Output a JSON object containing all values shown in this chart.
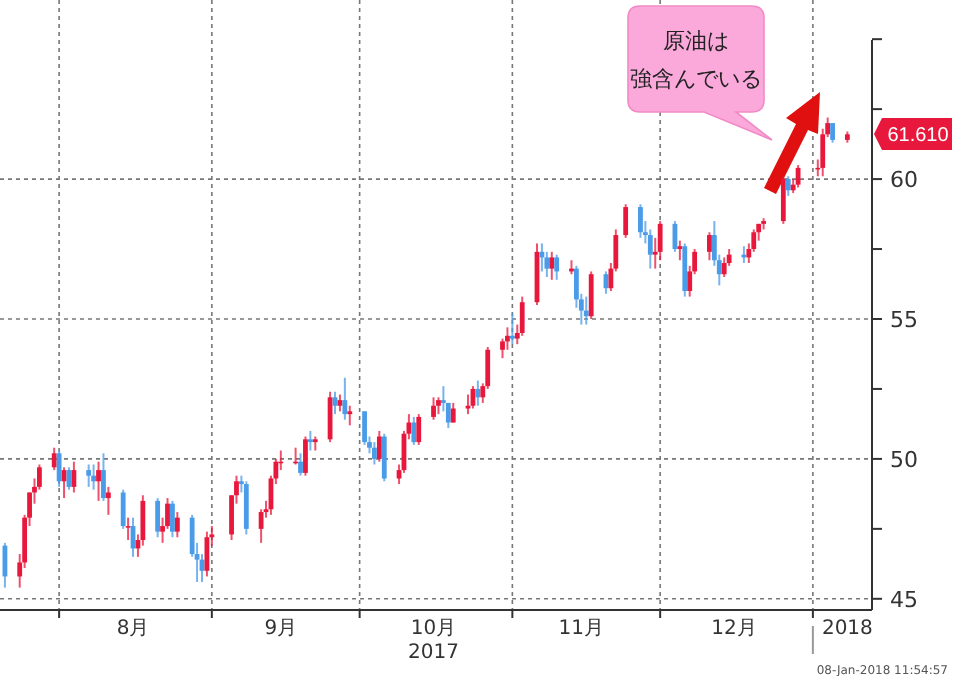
{
  "chart_data": {
    "type": "candlestick",
    "x": [
      "2017-07-21",
      "2017-07-24",
      "2017-07-25",
      "2017-07-26",
      "2017-07-27",
      "2017-07-28",
      "2017-07-31",
      "2017-08-01",
      "2017-08-02",
      "2017-08-03",
      "2017-08-04",
      "2017-08-07",
      "2017-08-08",
      "2017-08-09",
      "2017-08-10",
      "2017-08-11",
      "2017-08-14",
      "2017-08-15",
      "2017-08-16",
      "2017-08-17",
      "2017-08-18",
      "2017-08-21",
      "2017-08-22",
      "2017-08-23",
      "2017-08-24",
      "2017-08-25",
      "2017-08-28",
      "2017-08-29",
      "2017-08-30",
      "2017-08-31",
      "2017-09-01",
      "2017-09-05",
      "2017-09-06",
      "2017-09-07",
      "2017-09-08",
      "2017-09-11",
      "2017-09-12",
      "2017-09-13",
      "2017-09-14",
      "2017-09-15",
      "2017-09-18",
      "2017-09-19",
      "2017-09-20",
      "2017-09-21",
      "2017-09-22",
      "2017-09-25",
      "2017-09-26",
      "2017-09-27",
      "2017-09-28",
      "2017-09-29",
      "2017-10-02",
      "2017-10-03",
      "2017-10-04",
      "2017-10-05",
      "2017-10-06",
      "2017-10-09",
      "2017-10-10",
      "2017-10-11",
      "2017-10-12",
      "2017-10-13",
      "2017-10-16",
      "2017-10-17",
      "2017-10-18",
      "2017-10-19",
      "2017-10-20",
      "2017-10-23",
      "2017-10-24",
      "2017-10-25",
      "2017-10-26",
      "2017-10-27",
      "2017-10-30",
      "2017-10-31",
      "2017-11-01",
      "2017-11-02",
      "2017-11-03",
      "2017-11-06",
      "2017-11-07",
      "2017-11-08",
      "2017-11-09",
      "2017-11-10",
      "2017-11-13",
      "2017-11-14",
      "2017-11-15",
      "2017-11-16",
      "2017-11-17",
      "2017-11-20",
      "2017-11-21",
      "2017-11-22",
      "2017-11-24",
      "2017-11-27",
      "2017-11-28",
      "2017-11-29",
      "2017-11-30",
      "2017-12-01",
      "2017-12-04",
      "2017-12-05",
      "2017-12-06",
      "2017-12-07",
      "2017-12-08",
      "2017-12-11",
      "2017-12-12",
      "2017-12-13",
      "2017-12-14",
      "2017-12-15",
      "2017-12-18",
      "2017-12-19",
      "2017-12-20",
      "2017-12-21",
      "2017-12-22",
      "2017-12-26",
      "2017-12-27",
      "2017-12-28",
      "2017-12-29",
      "2018-01-02",
      "2018-01-03",
      "2018-01-04",
      "2018-01-05",
      "2018-01-08"
    ],
    "ohlc": [
      [
        46.9,
        47.0,
        45.4,
        45.8
      ],
      [
        45.8,
        46.6,
        45.4,
        46.3
      ],
      [
        46.3,
        48.0,
        46.1,
        47.9
      ],
      [
        47.9,
        48.8,
        47.6,
        48.8
      ],
      [
        48.8,
        49.3,
        48.4,
        49.0
      ],
      [
        49.0,
        49.8,
        48.9,
        49.7
      ],
      [
        49.7,
        50.4,
        49.6,
        50.2
      ],
      [
        50.2,
        50.3,
        49.0,
        49.2
      ],
      [
        49.2,
        49.7,
        48.6,
        49.6
      ],
      [
        49.6,
        49.7,
        48.9,
        49.0
      ],
      [
        49.0,
        49.9,
        48.8,
        49.6
      ],
      [
        49.6,
        49.8,
        49.0,
        49.4
      ],
      [
        49.4,
        49.8,
        48.9,
        49.2
      ],
      [
        49.2,
        49.9,
        48.5,
        49.6
      ],
      [
        49.6,
        50.2,
        48.5,
        48.6
      ],
      [
        48.6,
        49.0,
        48.0,
        48.8
      ],
      [
        48.8,
        48.9,
        47.5,
        47.6
      ],
      [
        47.6,
        47.9,
        47.1,
        47.6
      ],
      [
        47.6,
        47.9,
        46.5,
        46.8
      ],
      [
        46.8,
        47.3,
        46.5,
        47.1
      ],
      [
        47.1,
        48.7,
        46.9,
        48.5
      ],
      [
        48.5,
        48.6,
        47.2,
        47.4
      ],
      [
        47.4,
        47.9,
        47.0,
        47.6
      ],
      [
        47.6,
        48.6,
        47.5,
        48.4
      ],
      [
        48.4,
        48.5,
        47.2,
        47.4
      ],
      [
        47.4,
        48.1,
        47.2,
        47.9
      ],
      [
        47.9,
        48.0,
        46.5,
        46.6
      ],
      [
        46.6,
        47.0,
        45.6,
        46.4
      ],
      [
        46.4,
        46.6,
        45.6,
        46.0
      ],
      [
        46.0,
        47.4,
        45.8,
        47.2
      ],
      [
        47.2,
        47.6,
        46.9,
        47.3
      ],
      [
        47.3,
        48.7,
        47.1,
        48.7
      ],
      [
        48.7,
        49.4,
        48.4,
        49.2
      ],
      [
        49.2,
        49.4,
        48.8,
        49.1
      ],
      [
        49.1,
        49.2,
        47.3,
        47.5
      ],
      [
        47.5,
        48.2,
        47.0,
        48.1
      ],
      [
        48.1,
        48.5,
        47.9,
        48.2
      ],
      [
        48.2,
        49.4,
        48.0,
        49.3
      ],
      [
        49.3,
        50.0,
        49.1,
        49.9
      ],
      [
        49.9,
        50.3,
        49.6,
        49.9
      ],
      [
        49.9,
        50.4,
        49.8,
        49.9
      ],
      [
        49.9,
        50.2,
        49.4,
        49.5
      ],
      [
        49.5,
        50.8,
        49.4,
        50.7
      ],
      [
        50.7,
        51.0,
        50.3,
        50.6
      ],
      [
        50.6,
        50.8,
        50.3,
        50.7
      ],
      [
        50.7,
        52.4,
        50.6,
        52.2
      ],
      [
        52.2,
        52.4,
        51.6,
        51.9
      ],
      [
        51.9,
        52.3,
        51.7,
        52.1
      ],
      [
        52.1,
        52.9,
        51.4,
        51.6
      ],
      [
        51.6,
        51.9,
        51.2,
        51.7
      ],
      [
        51.7,
        51.7,
        50.5,
        50.6
      ],
      [
        50.6,
        50.8,
        50.2,
        50.4
      ],
      [
        50.4,
        50.6,
        49.8,
        50.0
      ],
      [
        50.0,
        51.0,
        49.9,
        50.8
      ],
      [
        50.8,
        50.9,
        49.2,
        49.3
      ],
      [
        49.3,
        49.8,
        49.1,
        49.6
      ],
      [
        49.6,
        51.0,
        49.5,
        50.9
      ],
      [
        50.9,
        51.6,
        50.7,
        51.3
      ],
      [
        51.3,
        51.5,
        50.5,
        50.6
      ],
      [
        50.6,
        51.6,
        50.5,
        51.5
      ],
      [
        51.5,
        52.2,
        51.4,
        51.9
      ],
      [
        51.9,
        52.2,
        51.6,
        52.1
      ],
      [
        52.1,
        52.6,
        51.7,
        52.0
      ],
      [
        52.0,
        52.0,
        51.1,
        51.3
      ],
      [
        51.3,
        52.0,
        51.3,
        51.8
      ],
      [
        51.8,
        52.3,
        51.6,
        51.9
      ],
      [
        51.9,
        52.6,
        51.8,
        52.5
      ],
      [
        52.5,
        52.8,
        51.9,
        52.2
      ],
      [
        52.2,
        52.7,
        52.0,
        52.6
      ],
      [
        52.6,
        54.0,
        52.5,
        53.9
      ],
      [
        53.9,
        54.3,
        53.6,
        54.2
      ],
      [
        54.2,
        54.7,
        53.9,
        54.4
      ],
      [
        54.4,
        55.2,
        54.1,
        54.3
      ],
      [
        54.3,
        54.8,
        54.1,
        54.5
      ],
      [
        54.5,
        55.8,
        54.4,
        55.6
      ],
      [
        55.6,
        57.7,
        55.5,
        57.4
      ],
      [
        57.4,
        57.7,
        56.7,
        57.2
      ],
      [
        57.2,
        57.4,
        56.5,
        56.8
      ],
      [
        56.8,
        57.4,
        56.4,
        57.2
      ],
      [
        57.2,
        57.3,
        56.4,
        56.7
      ],
      [
        56.7,
        57.1,
        56.6,
        56.8
      ],
      [
        56.8,
        56.9,
        55.4,
        55.7
      ],
      [
        55.7,
        55.9,
        54.8,
        55.3
      ],
      [
        55.3,
        55.8,
        54.8,
        55.1
      ],
      [
        55.1,
        56.7,
        55.0,
        56.6
      ],
      [
        56.6,
        56.7,
        55.9,
        56.1
      ],
      [
        56.1,
        57.0,
        56.0,
        56.8
      ],
      [
        56.8,
        58.2,
        56.7,
        58.0
      ],
      [
        58.0,
        59.1,
        57.9,
        59.0
      ],
      [
        59.0,
        59.1,
        57.9,
        58.1
      ],
      [
        58.1,
        58.5,
        57.7,
        58.0
      ],
      [
        58.0,
        58.2,
        56.8,
        57.3
      ],
      [
        57.3,
        57.9,
        56.8,
        57.4
      ],
      [
        57.4,
        58.5,
        57.1,
        58.4
      ],
      [
        58.4,
        58.5,
        57.4,
        57.5
      ],
      [
        57.5,
        57.8,
        57.1,
        57.6
      ],
      [
        57.6,
        57.7,
        55.8,
        56.0
      ],
      [
        56.0,
        56.9,
        55.8,
        56.7
      ],
      [
        56.7,
        57.5,
        56.6,
        57.4
      ],
      [
        57.4,
        58.1,
        57.1,
        58.0
      ],
      [
        58.0,
        58.5,
        56.9,
        57.1
      ],
      [
        57.1,
        57.3,
        56.2,
        56.6
      ],
      [
        56.6,
        57.2,
        56.5,
        57.0
      ],
      [
        57.0,
        57.5,
        56.9,
        57.3
      ],
      [
        57.3,
        57.6,
        57.0,
        57.2
      ],
      [
        57.2,
        57.7,
        57.0,
        57.5
      ],
      [
        57.5,
        58.2,
        57.4,
        58.1
      ],
      [
        58.1,
        58.4,
        57.8,
        58.4
      ],
      [
        58.4,
        58.6,
        58.2,
        58.5
      ],
      [
        58.5,
        60.1,
        58.4,
        60.0
      ],
      [
        60.0,
        60.1,
        59.4,
        59.6
      ],
      [
        59.6,
        60.0,
        59.5,
        59.8
      ],
      [
        59.8,
        60.5,
        59.7,
        60.4
      ],
      [
        60.4,
        60.7,
        60.1,
        60.4
      ],
      [
        60.4,
        61.8,
        60.1,
        61.6
      ],
      [
        61.6,
        62.2,
        61.5,
        62.0
      ],
      [
        62.0,
        62.0,
        61.3,
        61.4
      ],
      [
        61.4,
        61.7,
        61.3,
        61.6
      ]
    ],
    "colors": [
      "#4a9be8",
      "#e8173c",
      "#e8173c",
      "#e8173c",
      "#e8173c",
      "#e8173c",
      "#e8173c",
      "#4a9be8",
      "#e8173c",
      "#4a9be8",
      "#e8173c",
      "#4a9be8",
      "#4a9be8",
      "#e8173c",
      "#4a9be8",
      "#e8173c",
      "#4a9be8",
      "#e8173c",
      "#4a9be8",
      "#e8173c",
      "#e8173c",
      "#4a9be8",
      "#e8173c",
      "#e8173c",
      "#4a9be8",
      "#e8173c",
      "#4a9be8",
      "#4a9be8",
      "#4a9be8",
      "#e8173c",
      "#e8173c",
      "#e8173c",
      "#e8173c",
      "#4a9be8",
      "#4a9be8",
      "#e8173c",
      "#e8173c",
      "#e8173c",
      "#e8173c",
      "#e8173c",
      "#e8173c",
      "#4a9be8",
      "#e8173c",
      "#4a9be8",
      "#e8173c",
      "#e8173c",
      "#4a9be8",
      "#e8173c",
      "#4a9be8",
      "#e8173c",
      "#4a9be8",
      "#4a9be8",
      "#4a9be8",
      "#e8173c",
      "#4a9be8",
      "#e8173c",
      "#e8173c",
      "#e8173c",
      "#4a9be8",
      "#e8173c",
      "#e8173c",
      "#e8173c",
      "#4a9be8",
      "#4a9be8",
      "#e8173c",
      "#e8173c",
      "#e8173c",
      "#4a9be8",
      "#e8173c",
      "#e8173c",
      "#e8173c",
      "#e8173c",
      "#4a9be8",
      "#e8173c",
      "#e8173c",
      "#e8173c",
      "#4a9be8",
      "#4a9be8",
      "#e8173c",
      "#4a9be8",
      "#e8173c",
      "#4a9be8",
      "#4a9be8",
      "#4a9be8",
      "#e8173c",
      "#4a9be8",
      "#e8173c",
      "#e8173c",
      "#e8173c",
      "#4a9be8",
      "#4a9be8",
      "#4a9be8",
      "#e8173c",
      "#e8173c",
      "#4a9be8",
      "#e8173c",
      "#4a9be8",
      "#e8173c",
      "#e8173c",
      "#e8173c",
      "#4a9be8",
      "#4a9be8",
      "#e8173c",
      "#e8173c",
      "#4a9be8",
      "#e8173c",
      "#e8173c",
      "#e8173c",
      "#e8173c",
      "#e8173c",
      "#4a9be8",
      "#e8173c",
      "#e8173c",
      "#e8173c",
      "#e8173c",
      "#e8173c",
      "#4a9be8",
      "#e8173c"
    ],
    "xlim": [
      "2017-07-20",
      "2018-01-13"
    ],
    "xticks": [
      {
        "value": "2017-08-01",
        "label": null
      },
      {
        "value": "2017-08-16",
        "label": "8月"
      },
      {
        "value": "2017-09-01",
        "label": null
      },
      {
        "value": "2017-09-15",
        "label": "9月"
      },
      {
        "value": "2017-10-01",
        "label": null
      },
      {
        "value": "2017-10-16",
        "label": "10月\n2017"
      },
      {
        "value": "2017-11-01",
        "label": null
      },
      {
        "value": "2017-11-15",
        "label": "11月"
      },
      {
        "value": "2017-12-01",
        "label": null
      },
      {
        "value": "2017-12-16",
        "label": "12月"
      },
      {
        "value": "2018-01-01",
        "label": null
      },
      {
        "value": "2018-01-08",
        "label": "2018"
      }
    ],
    "ylim": [
      44.6,
      66.4
    ],
    "yticks": [
      45,
      {
        "value": 47.5,
        "label": null
      },
      50,
      {
        "value": 52.5,
        "label": null
      },
      55,
      {
        "value": 57.5,
        "label": null
      },
      60,
      {
        "value": 62.5,
        "label": null
      },
      {
        "value": 65,
        "label": null
      }
    ],
    "grid": true,
    "annotations": [
      "原油は",
      "強含んでいる",
      {
        "text": "61.610",
        "x": "2018-01-08",
        "y": 61.61
      },
      "08-Jan-2018 11:54:57"
    ]
  }
}
